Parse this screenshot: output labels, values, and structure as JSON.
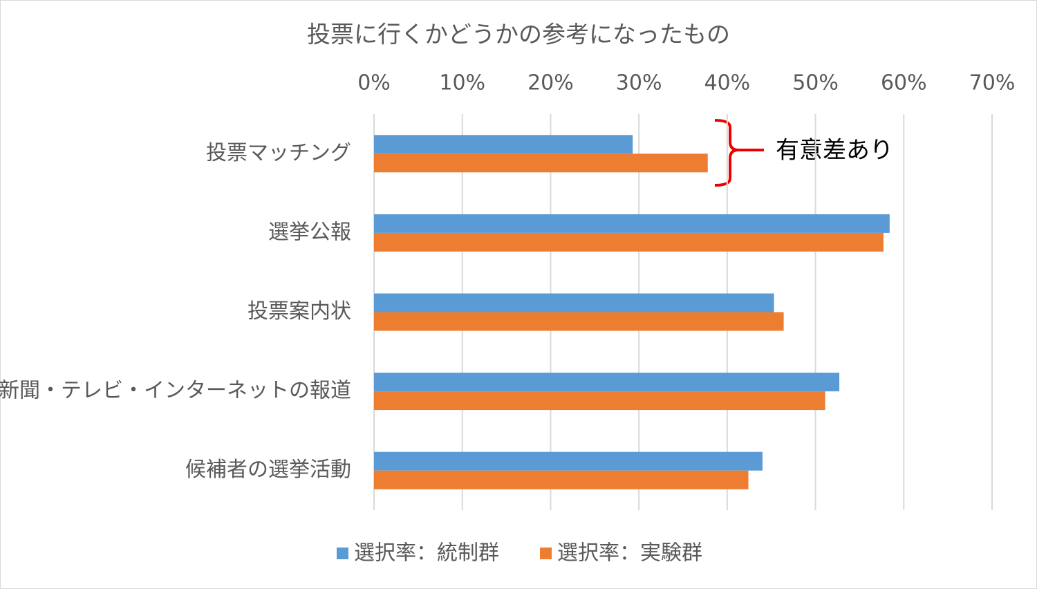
{
  "chart_data": {
    "type": "bar",
    "orientation": "horizontal",
    "title": "投票に行くかどうかの参考になったもの",
    "categories": [
      "投票マッチング",
      "選挙公報",
      "投票案内状",
      "新聞・テレビ・インターネットの報道",
      "候補者の選挙活動"
    ],
    "series": [
      {
        "name": "選択率：統制群",
        "color": "#5b9bd5",
        "values": [
          29.3,
          58.4,
          45.3,
          52.7,
          44.0
        ]
      },
      {
        "name": "選択率：実験群",
        "color": "#ed7d31",
        "values": [
          37.8,
          57.7,
          46.4,
          51.1,
          42.4
        ]
      }
    ],
    "xlim": [
      0,
      70
    ],
    "xticks": [
      {
        "value": 0,
        "label": "0%"
      },
      {
        "value": 10,
        "label": "10%"
      },
      {
        "value": 20,
        "label": "20%"
      },
      {
        "value": 30,
        "label": "30%"
      },
      {
        "value": 40,
        "label": "40%"
      },
      {
        "value": 50,
        "label": "50%"
      },
      {
        "value": 60,
        "label": "60%"
      },
      {
        "value": 70,
        "label": "70%"
      }
    ],
    "grid": true,
    "legend": "bottom",
    "annotation": "有意差あり"
  }
}
